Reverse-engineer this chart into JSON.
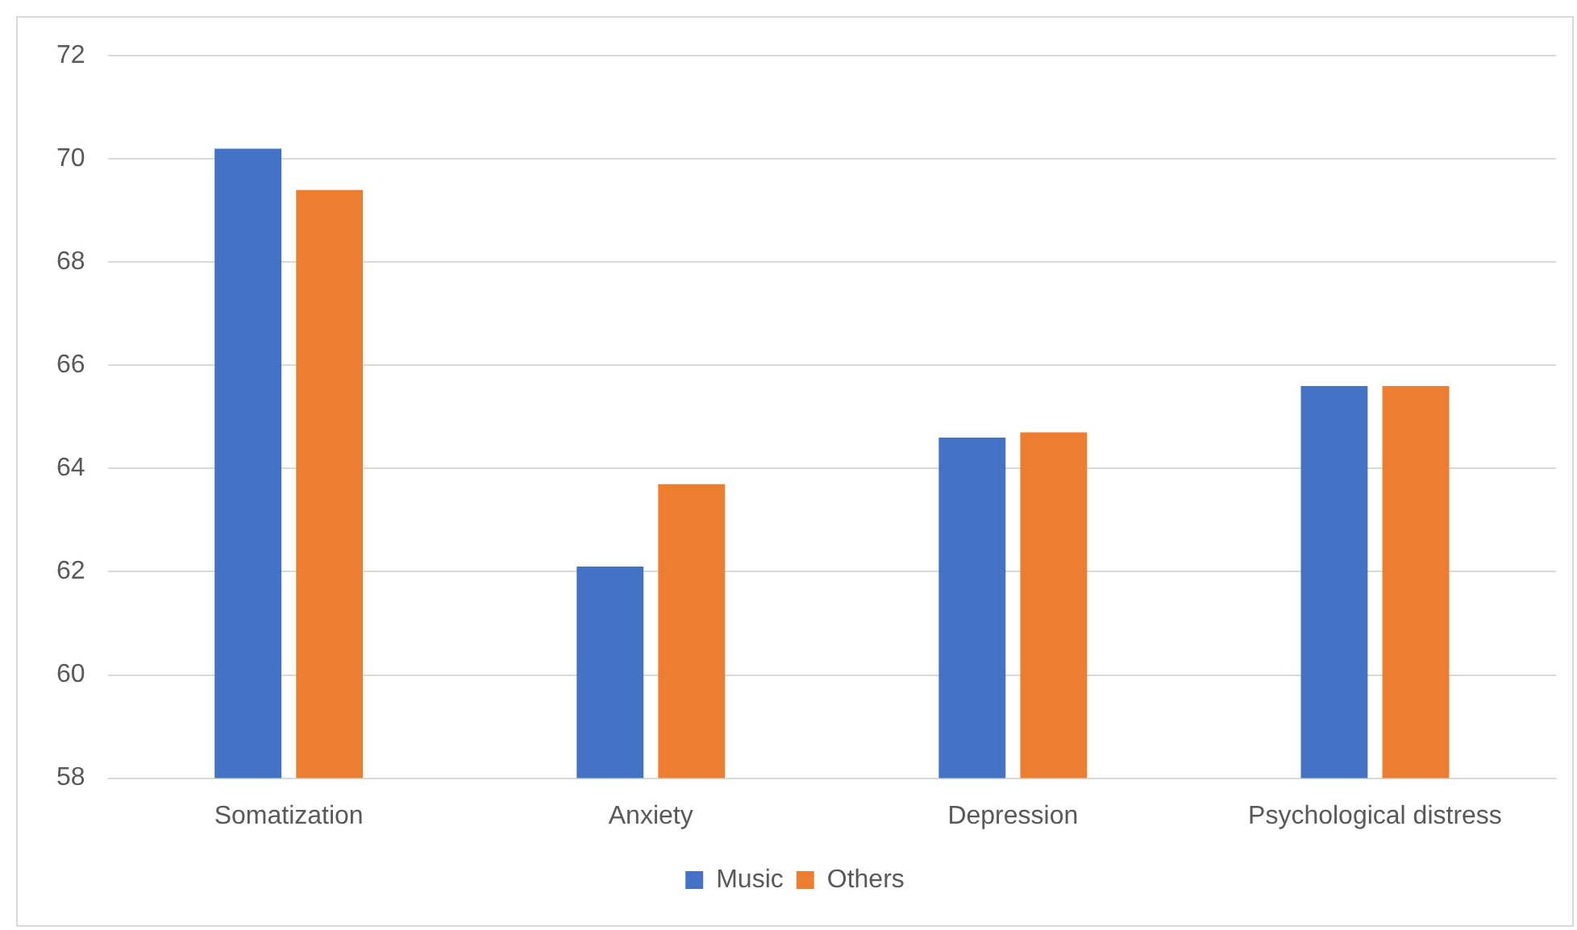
{
  "chart_data": {
    "type": "bar",
    "categories": [
      "Somatization",
      "Anxiety",
      "Depression",
      "Psychological distress"
    ],
    "series": [
      {
        "name": "Music",
        "color": "#4472c4",
        "values": [
          70.2,
          62.1,
          64.6,
          65.6
        ]
      },
      {
        "name": "Others",
        "color": "#ed7d31",
        "values": [
          69.4,
          63.7,
          64.7,
          65.6
        ]
      }
    ],
    "ylim": [
      58,
      72
    ],
    "yticks": [
      58,
      60,
      62,
      64,
      66,
      68,
      70,
      72
    ],
    "grid": "y",
    "legend": "bottom"
  }
}
